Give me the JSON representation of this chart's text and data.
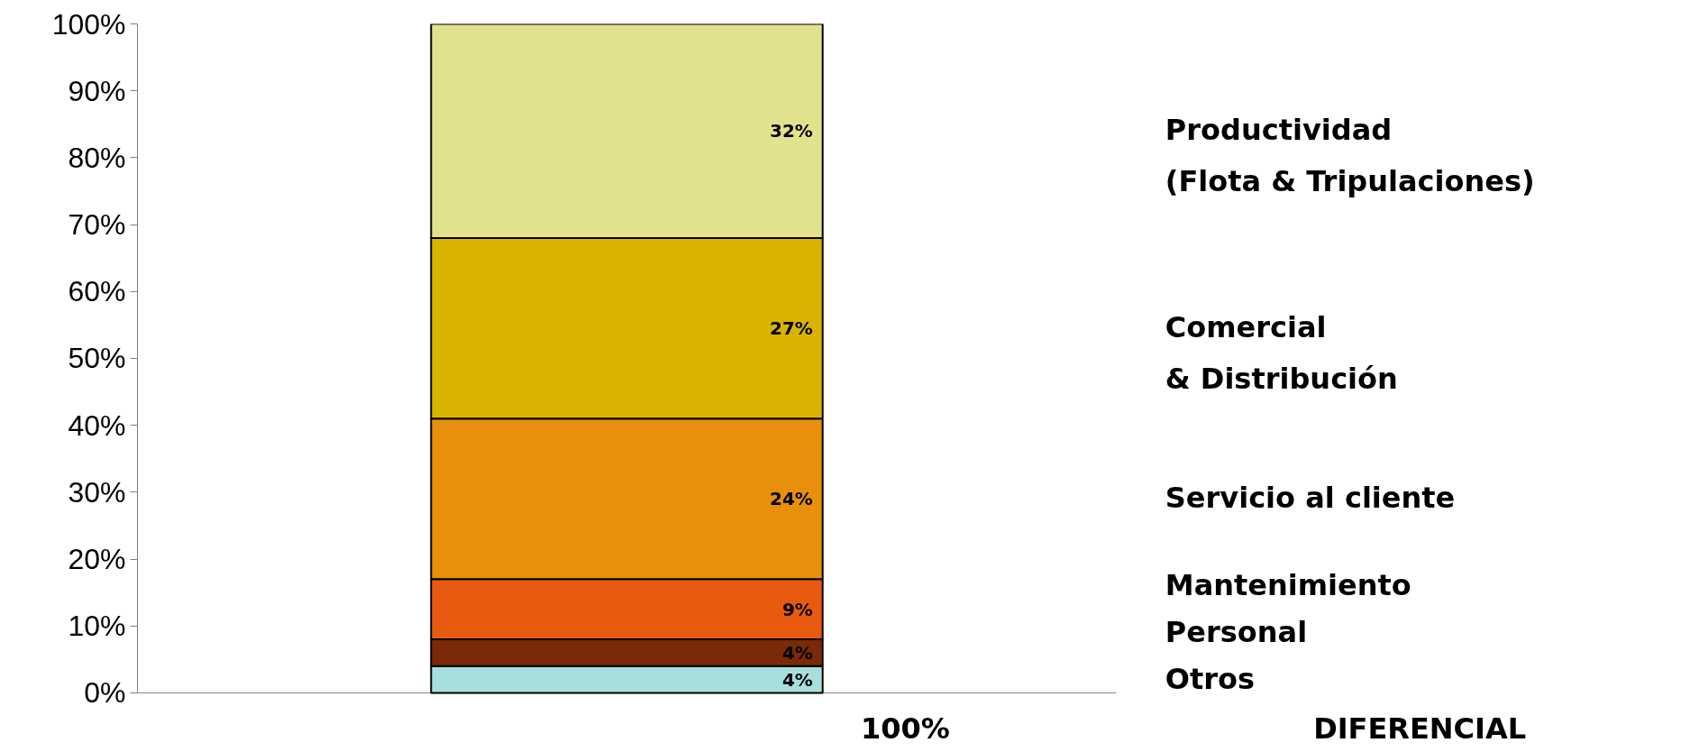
{
  "chart_data": {
    "type": "bar",
    "stacked": true,
    "categories": [
      null
    ],
    "series": [
      {
        "name": "Otros",
        "color": "#a8dede",
        "values": [
          4
        ],
        "value_labels": [
          "4%"
        ]
      },
      {
        "name": "Personal",
        "color": "#7a2a08",
        "values": [
          4
        ],
        "value_labels": [
          "4%"
        ]
      },
      {
        "name": "Mantenimiento",
        "color": "#e85a10",
        "values": [
          9
        ],
        "value_labels": [
          "9%"
        ]
      },
      {
        "name": "Servicio al cliente",
        "color": "#e8900c",
        "values": [
          24
        ],
        "value_labels": [
          "24%"
        ]
      },
      {
        "name": "Comercial\n& Distribución",
        "color": "#d8b400",
        "values": [
          27
        ],
        "value_labels": [
          "27%"
        ]
      },
      {
        "name": "Productividad\n(Flota & Tripulaciones)",
        "color": "#e2e28e",
        "values": [
          32
        ],
        "value_labels": [
          "32%"
        ]
      }
    ],
    "ylim": [
      0,
      100
    ],
    "yticks": [
      {
        "value": 0,
        "label": "0%"
      },
      {
        "value": 10,
        "label": "10%"
      },
      {
        "value": 20,
        "label": "20%"
      },
      {
        "value": 30,
        "label": "30%"
      },
      {
        "value": 40,
        "label": "40%"
      },
      {
        "value": 50,
        "label": "50%"
      },
      {
        "value": 60,
        "label": "60%"
      },
      {
        "value": 70,
        "label": "70%"
      },
      {
        "value": 80,
        "label": "80%"
      },
      {
        "value": 90,
        "label": "90%"
      },
      {
        "value": 100,
        "label": "100%"
      }
    ],
    "totals": [
      "100%"
    ],
    "annotations": [
      "DIFERENCIAL"
    ]
  }
}
